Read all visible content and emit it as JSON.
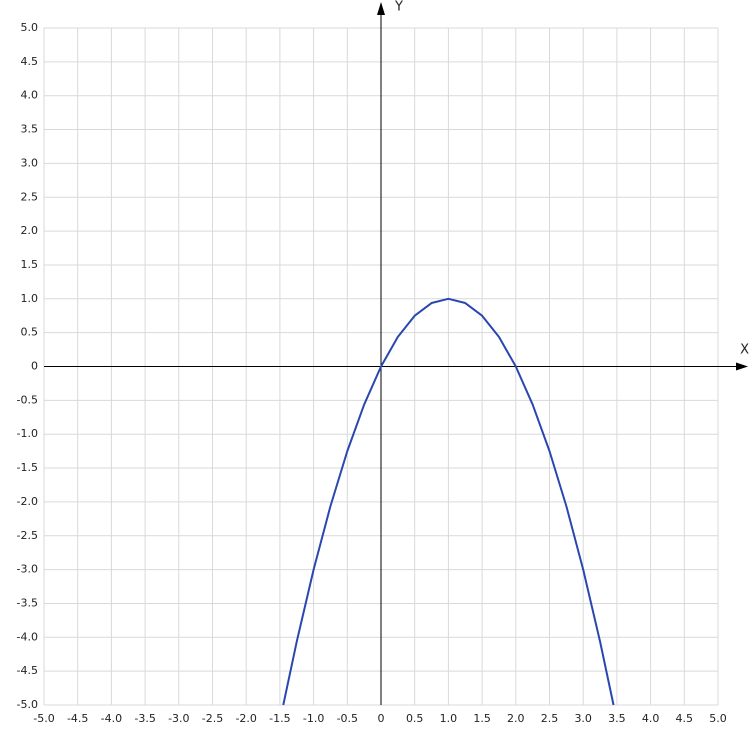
{
  "chart_data": {
    "type": "line",
    "x_label": "X",
    "y_label": "Y",
    "xlim": [
      -5,
      5
    ],
    "ylim": [
      -5,
      5
    ],
    "xticks": [
      {
        "value": -5,
        "label": "-5.0"
      },
      -4.5,
      {
        "value": -4,
        "label": "-4.0"
      },
      -3.5,
      {
        "value": -3,
        "label": "-3.0"
      },
      -2.5,
      {
        "value": -2,
        "label": "-2.0"
      },
      -1.5,
      {
        "value": -1,
        "label": "-1.0"
      },
      -0.5,
      0,
      0.5,
      {
        "value": 1,
        "label": "1.0"
      },
      1.5,
      {
        "value": 2,
        "label": "2.0"
      },
      2.5,
      {
        "value": 3,
        "label": "3.0"
      },
      3.5,
      {
        "value": 4,
        "label": "4.0"
      },
      4.5,
      {
        "value": 5,
        "label": "5.0"
      }
    ],
    "yticks": [
      {
        "value": -5,
        "label": "-5.0"
      },
      -4.5,
      {
        "value": -4,
        "label": "-4.0"
      },
      -3.5,
      {
        "value": -3,
        "label": "-3.0"
      },
      -2.5,
      {
        "value": -2,
        "label": "-2.0"
      },
      -1.5,
      {
        "value": -1,
        "label": "-1.0"
      },
      -0.5,
      0,
      0.5,
      {
        "value": 1,
        "label": "1.0"
      },
      1.5,
      {
        "value": 2,
        "label": "2.0"
      },
      2.5,
      {
        "value": 3,
        "label": "3.0"
      },
      3.5,
      {
        "value": 4,
        "label": "4.0"
      },
      4.5,
      {
        "value": 5,
        "label": "5.0"
      }
    ],
    "grid": true,
    "series": [
      {
        "color": "#2a47b0",
        "x": [
          -1.45,
          -1.25,
          -1,
          -0.75,
          -0.5,
          -0.25,
          0,
          0.25,
          0.5,
          0.75,
          1,
          1.25,
          1.5,
          1.75,
          2,
          2.25,
          2.5,
          2.75,
          3,
          3.25,
          3.45
        ],
        "values": [
          -5.0,
          -4.0625,
          -3,
          -2.0625,
          -1.25,
          -0.5625,
          0,
          0.4375,
          0.75,
          0.9375,
          1,
          0.9375,
          0.75,
          0.4375,
          0,
          -0.5625,
          -1.25,
          -2.0625,
          -3,
          -4.0625,
          -5.0
        ]
      }
    ]
  }
}
